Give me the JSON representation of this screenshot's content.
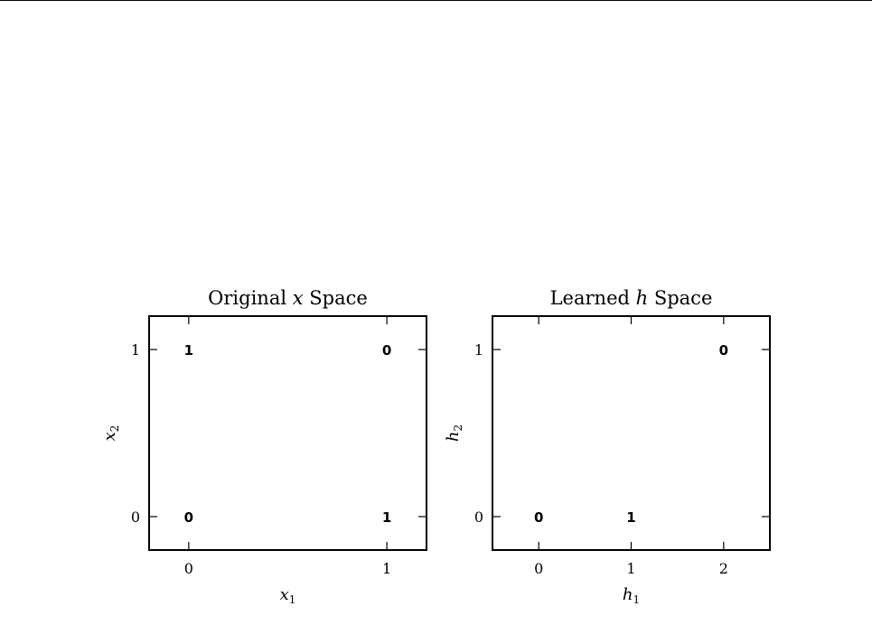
{
  "chart_data": [
    {
      "type": "scatter",
      "title": "Original x Space",
      "title_parts": {
        "pre": "Original ",
        "var": "x",
        "post": " Space"
      },
      "xlabel": {
        "var": "x",
        "sub": "1"
      },
      "ylabel": {
        "var": "x",
        "sub": "2"
      },
      "xlim": [
        -0.2,
        1.2
      ],
      "ylim": [
        -0.2,
        1.2
      ],
      "xticks": [
        0,
        1
      ],
      "yticks": [
        0,
        1
      ],
      "xtick_labels": [
        "0",
        "1"
      ],
      "ytick_labels": [
        "0",
        "1"
      ],
      "grid": false,
      "points": [
        {
          "x": 0,
          "y": 1,
          "label": "1"
        },
        {
          "x": 1,
          "y": 1,
          "label": "0"
        },
        {
          "x": 0,
          "y": 0,
          "label": "0"
        },
        {
          "x": 1,
          "y": 0,
          "label": "1"
        }
      ]
    },
    {
      "type": "scatter",
      "title": "Learned h Space",
      "title_parts": {
        "pre": "Learned ",
        "var": "h",
        "post": " Space"
      },
      "xlabel": {
        "var": "h",
        "sub": "1"
      },
      "ylabel": {
        "var": "h",
        "sub": "2"
      },
      "xlim": [
        -0.5,
        2.5
      ],
      "ylim": [
        -0.2,
        1.2
      ],
      "xticks": [
        0,
        1,
        2
      ],
      "yticks": [
        0,
        1
      ],
      "xtick_labels": [
        "0",
        "1",
        "2"
      ],
      "ytick_labels": [
        "0",
        "1"
      ],
      "grid": false,
      "points": [
        {
          "x": 2,
          "y": 1,
          "label": "0"
        },
        {
          "x": 0,
          "y": 0,
          "label": "0"
        },
        {
          "x": 1,
          "y": 0,
          "label": "1"
        }
      ]
    }
  ]
}
